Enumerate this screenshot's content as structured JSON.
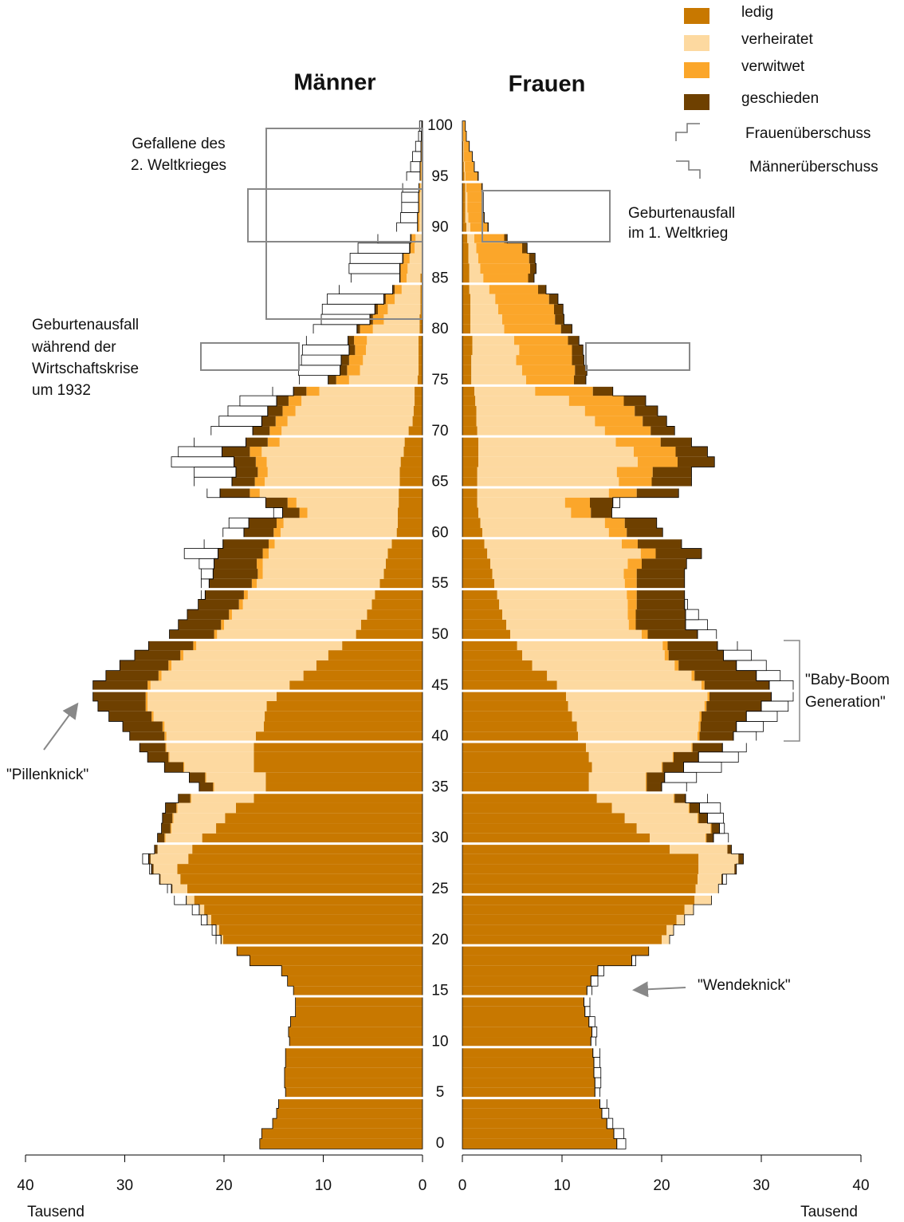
{
  "chart_data": {
    "type": "population_pyramid",
    "men_title": "Männer",
    "women_title": "Frauen",
    "xlabel": "Tausend",
    "xlim": [
      0,
      40
    ],
    "xticks": [
      0,
      10,
      20,
      30,
      40
    ],
    "ylim": [
      0,
      100
    ],
    "yticks": [
      0,
      5,
      10,
      15,
      20,
      25,
      30,
      35,
      40,
      45,
      50,
      55,
      60,
      65,
      70,
      75,
      80,
      85,
      90,
      95,
      100
    ],
    "ages": [
      0,
      1,
      2,
      3,
      4,
      5,
      6,
      7,
      8,
      9,
      10,
      11,
      12,
      13,
      14,
      15,
      16,
      17,
      18,
      19,
      20,
      21,
      22,
      23,
      24,
      25,
      26,
      27,
      28,
      29,
      30,
      31,
      32,
      33,
      34,
      35,
      36,
      37,
      38,
      39,
      40,
      41,
      42,
      43,
      44,
      45,
      46,
      47,
      48,
      49,
      50,
      51,
      52,
      53,
      54,
      55,
      56,
      57,
      58,
      59,
      60,
      61,
      62,
      63,
      64,
      65,
      66,
      67,
      68,
      69,
      70,
      71,
      72,
      73,
      74,
      75,
      76,
      77,
      78,
      79,
      80,
      81,
      82,
      83,
      84,
      85,
      86,
      87,
      88,
      89,
      90,
      91,
      92,
      93,
      94,
      95,
      96,
      97,
      98,
      99,
      100
    ],
    "series": [
      {
        "name": "ledig",
        "color": "#c87800",
        "men": [
          16.4,
          16.2,
          15.1,
          14.7,
          14.5,
          13.8,
          13.9,
          13.9,
          13.8,
          13.8,
          13.4,
          13.5,
          13.3,
          12.8,
          12.8,
          13.0,
          13.6,
          14.2,
          17.4,
          18.7,
          20.1,
          20.5,
          21.3,
          22.0,
          23.0,
          23.7,
          24.4,
          24.7,
          23.6,
          23.2,
          22.2,
          20.8,
          19.9,
          18.8,
          17.0,
          15.8,
          15.8,
          17.0,
          17.0,
          17.0,
          16.8,
          16.0,
          15.9,
          15.7,
          14.7,
          13.4,
          12.0,
          10.7,
          9.5,
          8.1,
          6.7,
          6.2,
          5.6,
          5.1,
          4.8,
          4.3,
          3.9,
          3.7,
          3.5,
          3.1,
          2.6,
          2.5,
          2.5,
          2.4,
          2.4,
          2.3,
          2.3,
          2.2,
          1.9,
          1.8,
          1.4,
          1.0,
          0.9,
          0.8,
          0.8,
          0.5,
          0.4,
          0.4,
          0.4,
          0.4,
          0.3,
          0.3,
          0.2,
          0.2,
          0.2,
          0.2,
          0.1,
          0.1,
          0.1,
          0.1,
          0.1,
          0.1,
          0.1,
          0.1,
          0.1,
          0,
          0,
          0,
          0,
          0,
          0
        ],
        "women": [
          15.5,
          15.2,
          14.5,
          14.0,
          13.8,
          13.3,
          13.3,
          13.2,
          13.2,
          13.1,
          12.9,
          13.0,
          12.7,
          12.3,
          12.2,
          12.5,
          12.9,
          13.6,
          17.0,
          18.7,
          20.0,
          20.5,
          21.5,
          22.3,
          23.3,
          23.4,
          23.6,
          23.7,
          23.7,
          20.8,
          18.8,
          17.5,
          16.3,
          15.0,
          13.5,
          12.7,
          12.7,
          13.0,
          12.7,
          12.4,
          11.6,
          11.5,
          11.0,
          10.6,
          10.4,
          9.5,
          8.5,
          7.0,
          6.0,
          5.5,
          4.8,
          4.4,
          4.0,
          3.7,
          3.5,
          3.2,
          3.0,
          2.8,
          2.5,
          2.2,
          2.0,
          1.8,
          1.6,
          1.5,
          1.5,
          1.5,
          1.5,
          1.6,
          1.6,
          1.6,
          1.5,
          1.4,
          1.4,
          1.3,
          1.2,
          0.9,
          0.9,
          0.9,
          1.0,
          1.0,
          0.8,
          0.8,
          0.8,
          0.8,
          0.7,
          0.7,
          0.7,
          0.6,
          0.6,
          0.5,
          0.4,
          0.3,
          0.3,
          0.3,
          0.3,
          0.2,
          0.15,
          0.1,
          0.1,
          0.05,
          0.05
        ]
      },
      {
        "name": "verheiratet",
        "color": "#fdd9a0",
        "men": [
          0,
          0,
          0,
          0,
          0,
          0,
          0,
          0,
          0,
          0,
          0,
          0,
          0,
          0,
          0,
          0,
          0,
          0,
          0,
          0,
          0.2,
          0.3,
          0.4,
          0.5,
          0.8,
          1.5,
          2.0,
          2.4,
          3.8,
          3.5,
          3.7,
          4.5,
          5.2,
          5.9,
          6.3,
          5.2,
          6.0,
          7.0,
          8.5,
          8.8,
          9.0,
          10.0,
          11.2,
          12.0,
          13.0,
          14.0,
          14.3,
          14.6,
          14.6,
          14.7,
          14.0,
          13.8,
          13.6,
          13.0,
          12.8,
          12.4,
          12.2,
          12.4,
          12.0,
          11.8,
          11.7,
          11.5,
          9.1,
          10.3,
          14.0,
          13.6,
          13.3,
          13.5,
          14.3,
          12.6,
          12.8,
          12.6,
          11.9,
          11.4,
          9.6,
          6.9,
          5.9,
          5.6,
          5.3,
          5.2,
          4.7,
          3.6,
          3.3,
          2.6,
          1.9,
          1.4,
          1.4,
          1.2,
          0.7,
          0.6,
          0.2,
          0.2,
          0.15,
          0.15,
          0.1,
          0.1,
          0.1,
          0.05,
          0.05,
          0.05,
          0.02
        ],
        "women": [
          0,
          0,
          0,
          0,
          0,
          0,
          0,
          0,
          0,
          0,
          0,
          0,
          0,
          0,
          0,
          0,
          0,
          0,
          0,
          0,
          0.8,
          0.7,
          0.8,
          0.9,
          1.7,
          2.3,
          2.4,
          3.6,
          4.0,
          5.8,
          5.6,
          7.4,
          7.3,
          7.7,
          7.7,
          5.7,
          5.7,
          7.0,
          8.4,
          10.6,
          12.0,
          12.2,
          12.8,
          13.7,
          14.2,
          14.5,
          14.5,
          14.3,
          14.3,
          14.6,
          13.2,
          12.3,
          12.6,
          12.9,
          13.0,
          13.1,
          13.2,
          13.8,
          15.4,
          13.8,
          12.7,
          12.5,
          9.3,
          8.8,
          13.2,
          14.2,
          14.0,
          16.0,
          15.6,
          13.8,
          12.8,
          11.9,
          10.9,
          9.4,
          6.1,
          5.5,
          5.1,
          4.5,
          4.7,
          4.2,
          3.4,
          3.2,
          2.8,
          2.5,
          2.0,
          1.4,
          1.1,
          1.0,
          0.8,
          0.7,
          0.4,
          0.3,
          0.2,
          0.2,
          0.1,
          0.1,
          0.1,
          0.05,
          0.05,
          0.03,
          0.03
        ]
      },
      {
        "name": "verwitwet",
        "color": "#fba62a",
        "men": [
          0,
          0,
          0,
          0,
          0,
          0,
          0,
          0,
          0,
          0,
          0,
          0,
          0,
          0,
          0,
          0,
          0,
          0,
          0,
          0,
          0,
          0,
          0,
          0,
          0,
          0,
          0,
          0,
          0,
          0,
          0.1,
          0.1,
          0.1,
          0.1,
          0.1,
          0.1,
          0.1,
          0.1,
          0.1,
          0.1,
          0.2,
          0.2,
          0.2,
          0.2,
          0.2,
          0.3,
          0.3,
          0.3,
          0.3,
          0.3,
          0.3,
          0.3,
          0.3,
          0.4,
          0.4,
          0.5,
          0.5,
          0.6,
          0.6,
          0.6,
          0.7,
          0.7,
          0.8,
          0.9,
          1.0,
          1.0,
          1.0,
          1.1,
          1.2,
          1.2,
          1.2,
          1.2,
          1.3,
          1.3,
          1.3,
          1.3,
          1.3,
          1.4,
          1.1,
          1.3,
          1.3,
          1.1,
          1.0,
          0.9,
          0.7,
          0.6,
          0.7,
          0.6,
          0.4,
          0.4,
          0.2,
          0.2,
          0.15,
          0.15,
          0.15,
          0.15,
          0.15,
          0.1,
          0.1,
          0.08,
          0.05
        ],
        "women": [
          0,
          0,
          0,
          0,
          0,
          0,
          0,
          0,
          0,
          0,
          0,
          0,
          0,
          0,
          0,
          0,
          0,
          0,
          0,
          0,
          0,
          0,
          0,
          0,
          0,
          0,
          0,
          0,
          0,
          0,
          0.1,
          0.1,
          0.1,
          0.1,
          0.1,
          0.1,
          0.1,
          0.1,
          0.1,
          0.1,
          0.2,
          0.2,
          0.2,
          0.2,
          0.2,
          0.3,
          0.3,
          0.4,
          0.4,
          0.5,
          0.6,
          0.7,
          0.8,
          0.9,
          1.0,
          1.2,
          1.3,
          1.4,
          1.5,
          1.6,
          1.8,
          2.0,
          2.0,
          2.5,
          2.8,
          3.3,
          3.6,
          4.0,
          4.2,
          4.5,
          4.6,
          4.8,
          5.0,
          5.5,
          5.8,
          4.8,
          5.3,
          5.6,
          5.3,
          5.4,
          5.7,
          5.3,
          5.6,
          5.4,
          4.9,
          4.5,
          5.0,
          5.1,
          4.6,
          3.0,
          1.7,
          1.5,
          1.5,
          1.5,
          1.5,
          1.2,
          0.9,
          0.8,
          0.5,
          0.3,
          0.2
        ]
      },
      {
        "name": "geschieden",
        "color": "#6e4000",
        "men": [
          0,
          0,
          0,
          0,
          0,
          0,
          0,
          0,
          0,
          0,
          0,
          0,
          0,
          0,
          0,
          0,
          0,
          0,
          0,
          0,
          0,
          0,
          0,
          0,
          0,
          0.1,
          0.1,
          0.2,
          0.2,
          0.3,
          0.7,
          0.9,
          1.0,
          1.1,
          1.2,
          1.4,
          1.6,
          1.9,
          2.1,
          2.6,
          3.5,
          4.0,
          4.3,
          4.8,
          5.3,
          5.5,
          5.3,
          4.9,
          4.6,
          4.5,
          4.5,
          4.3,
          4.2,
          4.1,
          3.9,
          4.3,
          4.5,
          4.3,
          4.5,
          4.6,
          3.0,
          2.8,
          1.7,
          2.2,
          3.0,
          2.3,
          2.2,
          2.2,
          2.8,
          2.2,
          1.7,
          1.4,
          1.5,
          1.2,
          1.3,
          0.8,
          0.7,
          0.8,
          0.6,
          0.6,
          0.3,
          0.3,
          0.3,
          0.2,
          0.2,
          0.1,
          0.1,
          0.1,
          0.1,
          0.1,
          0,
          0,
          0,
          0,
          0,
          0,
          0,
          0,
          0,
          0,
          0
        ],
        "women": [
          0,
          0,
          0,
          0,
          0,
          0,
          0,
          0,
          0,
          0,
          0,
          0,
          0,
          0,
          0,
          0,
          0,
          0,
          0,
          0,
          0,
          0,
          0,
          0,
          0,
          0,
          0.1,
          0.2,
          0.5,
          0.4,
          0.7,
          0.8,
          0.9,
          1.0,
          1.1,
          1.5,
          1.8,
          2.1,
          2.5,
          3.0,
          3.4,
          3.6,
          4.5,
          5.5,
          6.2,
          6.5,
          6.2,
          5.8,
          5.5,
          5.0,
          5.0,
          5.0,
          5.0,
          4.8,
          4.8,
          4.8,
          4.8,
          4.5,
          4.6,
          4.4,
          3.6,
          3.2,
          2.1,
          2.3,
          4.2,
          4.0,
          3.9,
          3.7,
          3.2,
          3.1,
          2.4,
          2.4,
          2.3,
          2.2,
          2.0,
          1.2,
          1.2,
          1.2,
          1.1,
          1.1,
          1.1,
          0.9,
          0.9,
          0.9,
          0.8,
          0.6,
          0.6,
          0.6,
          0.5,
          0.3,
          0.1,
          0.1,
          0.1,
          0.1,
          0.1,
          0.1,
          0.05,
          0.05,
          0.05,
          0.02,
          0.02
        ]
      }
    ],
    "surplus_legend": [
      "Frauenüberschuss",
      "Männerüberschuss"
    ],
    "annotations": [
      {
        "lines": [
          "Gefallene des",
          "2. Weltkrieges"
        ]
      },
      {
        "lines": [
          "Geburtenausfall",
          "im 1. Weltkrieg"
        ]
      },
      {
        "lines": [
          "Geburtenausfall",
          "während der",
          "Wirtschaftskrise",
          "um 1932"
        ]
      },
      {
        "lines": [
          "\"Baby-Boom",
          "Generation\""
        ]
      },
      {
        "lines": [
          "\"Pillenknick\""
        ]
      },
      {
        "lines": [
          "\"Wendeknick\""
        ]
      }
    ]
  }
}
